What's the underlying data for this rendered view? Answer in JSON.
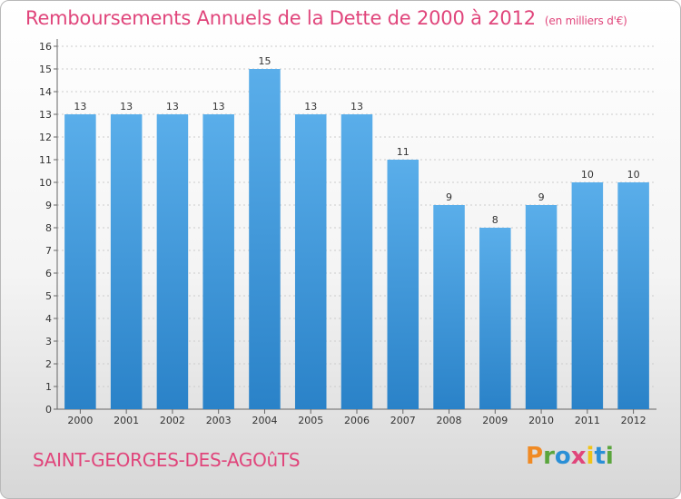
{
  "header": {
    "title": "Remboursements Annuels de la Dette de 2000 à 2012",
    "subtitle": "(en milliers d'€)"
  },
  "footer": {
    "place": "SAINT-GEORGES-DES-AGOûTS",
    "logo": "Proxiti",
    "logo_colors": [
      "#f08a24",
      "#5aa53d",
      "#2a8fd6",
      "#e0457b",
      "#f0c418",
      "#2a8fd6",
      "#5aa53d"
    ]
  },
  "colors": {
    "accent": "#e0457b",
    "bar_top": "#5aaeea",
    "bar_bottom": "#2a82c8",
    "text": "#333333",
    "grid": "#cccccc"
  },
  "chart_data": {
    "type": "bar",
    "title": "Remboursements Annuels de la Dette de 2000 à 2012",
    "subtitle": "(en milliers d'€)",
    "categories": [
      "2000",
      "2001",
      "2002",
      "2003",
      "2004",
      "2005",
      "2006",
      "2007",
      "2008",
      "2009",
      "2010",
      "2011",
      "2012"
    ],
    "values": [
      13,
      13,
      13,
      13,
      15,
      13,
      13,
      11,
      9,
      8,
      9,
      10,
      10
    ],
    "data_labels": [
      "13",
      "13",
      "13",
      "13",
      "15",
      "13",
      "13",
      "11",
      "9",
      "8",
      "9",
      "10",
      "10"
    ],
    "yticks": [
      "0",
      "1",
      "2",
      "3",
      "4",
      "5",
      "6",
      "7",
      "8",
      "9",
      "10",
      "11",
      "12",
      "13",
      "14",
      "15",
      "16"
    ],
    "ylim": [
      0,
      16
    ],
    "xlabel": "",
    "ylabel": "",
    "grid": true
  }
}
